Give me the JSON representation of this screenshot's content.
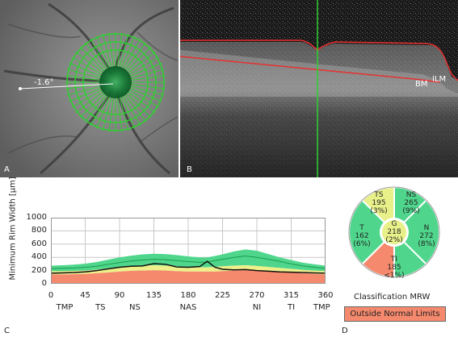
{
  "panelA": {
    "label": "A",
    "angle_text": "-1.6°"
  },
  "panelB": {
    "label": "B",
    "bm_label": "BM",
    "ilm_label": "ILM"
  },
  "panelC": {
    "label": "C",
    "ylabel": "Minimum Rim Width [µm]",
    "yticks": [
      "1000",
      "800",
      "600",
      "400",
      "200",
      "0"
    ],
    "xticks": [
      "0",
      "45",
      "90",
      "135",
      "180",
      "225",
      "270",
      "315",
      "360"
    ],
    "sectors": [
      "TMP",
      "TS",
      "NS",
      "NAS",
      "NI",
      "TI",
      "TMP"
    ]
  },
  "panelD": {
    "label": "D",
    "title": "Classification MRW",
    "status": "Outside Normal Limits",
    "sectors": {
      "TS": {
        "name": "TS",
        "value": "195",
        "pct": "(3%)",
        "color": "#e8f08a"
      },
      "NS": {
        "name": "NS",
        "value": "265",
        "pct": "(9%)",
        "color": "#4fd68c"
      },
      "T": {
        "name": "T",
        "value": "162",
        "pct": "(6%)",
        "color": "#4fd68c"
      },
      "G": {
        "name": "G",
        "value": "218",
        "pct": "(2%)",
        "color": "#e8f08a"
      },
      "N": {
        "name": "N",
        "value": "272",
        "pct": "(8%)",
        "color": "#4fd68c"
      },
      "TI": {
        "name": "TI",
        "value": "185",
        "pct": "<1%)",
        "color": "#f5896d"
      }
    }
  },
  "colors": {
    "green_band": "#4fd68c",
    "yellow_band": "#eef08a",
    "red_band": "#f5896d",
    "measure_line": "#111111",
    "normal_line": "#1a9a4a",
    "scan_line": "#2fd030",
    "segmentation_red": "#e83030"
  },
  "chart_data": {
    "type": "line",
    "title": "",
    "xlabel": "",
    "ylabel": "Minimum Rim Width [µm]",
    "xlim": [
      0,
      360
    ],
    "ylim": [
      0,
      1000
    ],
    "x": [
      0,
      15,
      30,
      45,
      60,
      75,
      90,
      105,
      120,
      135,
      150,
      165,
      180,
      195,
      205,
      215,
      225,
      240,
      255,
      270,
      285,
      300,
      315,
      330,
      345,
      360
    ],
    "series": [
      {
        "values": [
          160,
          165,
          170,
          180,
          200,
          225,
          250,
          265,
          270,
          305,
          295,
          255,
          250,
          260,
          340,
          250,
          220,
          210,
          215,
          200,
          190,
          180,
          175,
          170,
          165,
          160
        ]
      }
    ],
    "bands": {
      "red_upper": [
        140,
        140,
        145,
        150,
        160,
        170,
        185,
        195,
        200,
        205,
        200,
        190,
        185,
        185,
        185,
        185,
        190,
        200,
        205,
        200,
        190,
        180,
        170,
        160,
        150,
        140
      ],
      "yellow_upper": [
        190,
        190,
        195,
        200,
        215,
        235,
        255,
        270,
        275,
        280,
        275,
        265,
        255,
        250,
        250,
        255,
        265,
        275,
        280,
        270,
        255,
        240,
        225,
        210,
        200,
        190
      ],
      "green_upper": [
        275,
        280,
        290,
        305,
        330,
        365,
        400,
        425,
        445,
        455,
        450,
        435,
        415,
        400,
        400,
        420,
        445,
        490,
        520,
        500,
        450,
        400,
        360,
        320,
        295,
        275
      ],
      "mean": [
        230,
        235,
        240,
        250,
        265,
        295,
        320,
        345,
        360,
        370,
        365,
        350,
        335,
        325,
        330,
        350,
        370,
        400,
        420,
        400,
        370,
        340,
        300,
        270,
        250,
        230
      ]
    }
  }
}
